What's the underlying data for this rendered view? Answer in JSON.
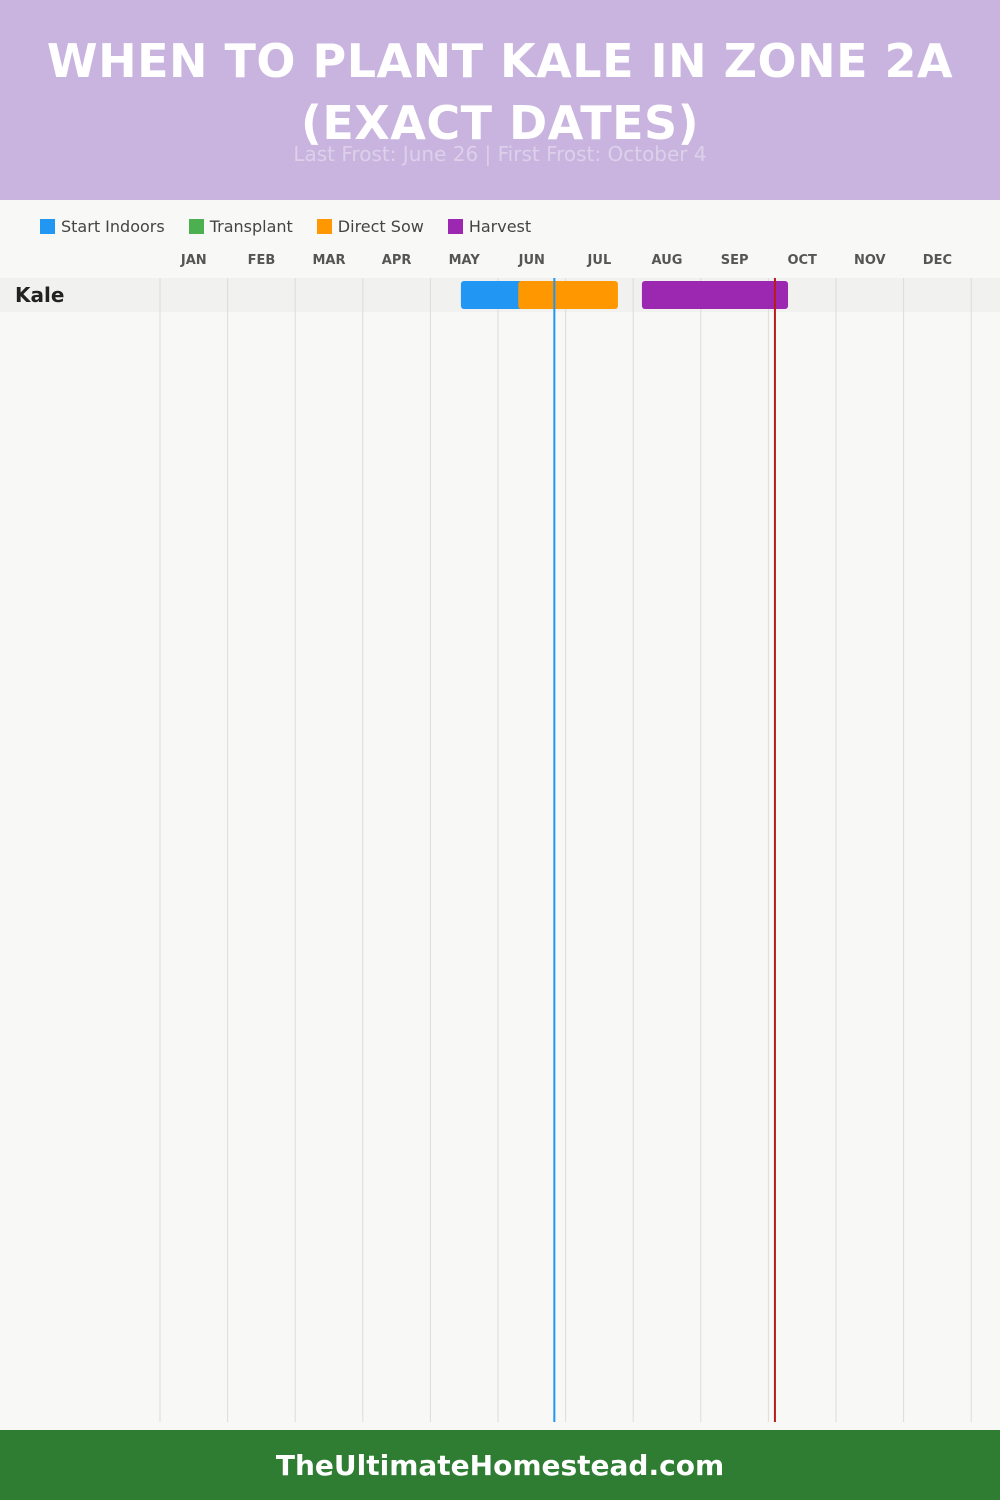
{
  "header": {
    "title": "When to Plant Kale in Zone 2a (Exact Dates)",
    "subtitle": "Last Frost: June 26 | First Frost: October 4"
  },
  "legend": [
    {
      "label": "Start Indoors",
      "color": "#2196f3"
    },
    {
      "label": "Transplant",
      "color": "#4caf50"
    },
    {
      "label": "Direct Sow",
      "color": "#ff9800"
    },
    {
      "label": "Harvest",
      "color": "#9c27b0"
    }
  ],
  "footer": {
    "site": "TheUltimateHomestead.com"
  },
  "chart_data": {
    "type": "gantt",
    "categories": [
      "Kale"
    ],
    "x_tick_labels": [
      "JAN",
      "FEB",
      "MAR",
      "APR",
      "MAY",
      "JUN",
      "JUL",
      "AUG",
      "SEP",
      "OCT",
      "NOV",
      "DEC"
    ],
    "x_range": [
      "Jan 1",
      "Dec 31"
    ],
    "grid": true,
    "legend_position": "top-left",
    "series": [
      {
        "name": "Start Indoors",
        "color": "#2196f3",
        "bars": [
          {
            "category": "Kale",
            "start": "May 15",
            "end": "Jun 26"
          }
        ]
      },
      {
        "name": "Transplant",
        "color": "#4caf50",
        "bars": []
      },
      {
        "name": "Direct Sow",
        "color": "#ff9800",
        "bars": [
          {
            "category": "Kale",
            "start": "Jun 10",
            "end": "Jul 25"
          }
        ]
      },
      {
        "name": "Harvest",
        "color": "#9c27b0",
        "bars": [
          {
            "category": "Kale",
            "start": "Aug 5",
            "end": "Oct 10"
          }
        ]
      }
    ],
    "reference_lines": [
      {
        "date": "Jun 26",
        "color": "#2196f3"
      },
      {
        "date": "Oct 4",
        "color": "#b71c1c"
      }
    ]
  }
}
